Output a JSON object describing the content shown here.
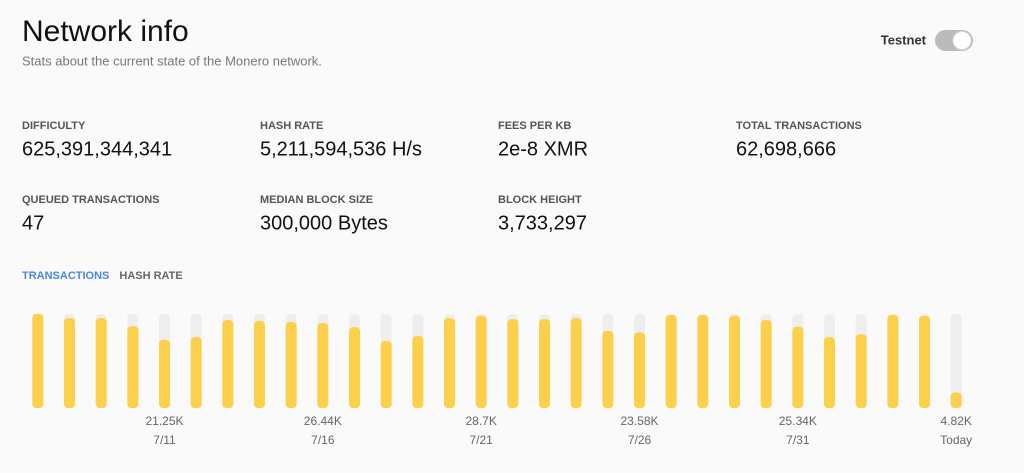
{
  "header": {
    "title": "Network info",
    "subtitle": "Stats about the current state of the Monero network."
  },
  "toggle": {
    "label": "Testnet",
    "on": true
  },
  "stats": [
    {
      "label": "DIFFICULTY",
      "value": "625,391,344,341"
    },
    {
      "label": "HASH RATE",
      "value": "5,211,594,536 H/s"
    },
    {
      "label": "FEES PER KB",
      "value": "2e-8 XMR"
    },
    {
      "label": "TOTAL TRANSACTIONS",
      "value": "62,698,666"
    },
    {
      "label": "QUEUED TRANSACTIONS",
      "value": "47"
    },
    {
      "label": "MEDIAN BLOCK SIZE",
      "value": "300,000 Bytes"
    },
    {
      "label": "BLOCK HEIGHT",
      "value": "3,733,297"
    }
  ],
  "tabs": [
    {
      "label": "TRANSACTIONS",
      "active": true
    },
    {
      "label": "HASH RATE",
      "active": false
    }
  ],
  "chart_data": {
    "type": "bar",
    "categories": [
      null,
      null,
      null,
      null,
      "7/11",
      null,
      null,
      null,
      null,
      "7/16",
      null,
      null,
      null,
      null,
      "7/21",
      null,
      null,
      null,
      null,
      "7/26",
      null,
      null,
      null,
      null,
      "7/31",
      null,
      null,
      null,
      null,
      "Today"
    ],
    "values": [
      29300,
      28000,
      28000,
      25500,
      21250,
      22100,
      27400,
      27100,
      26800,
      26440,
      25200,
      20900,
      22400,
      28000,
      28700,
      27700,
      27700,
      28000,
      24000,
      23580,
      29000,
      29000,
      28700,
      27400,
      25340,
      22100,
      23000,
      29000,
      28700,
      4820
    ],
    "value_labels": [
      null,
      null,
      null,
      null,
      "21.25K",
      null,
      null,
      null,
      null,
      "26.44K",
      null,
      null,
      null,
      null,
      "28.7K",
      null,
      null,
      null,
      null,
      "23.58K",
      null,
      null,
      null,
      null,
      "25.34K",
      null,
      null,
      null,
      null,
      "4.82K"
    ],
    "color": "#fcd04a",
    "track_color": "#eeeeee",
    "ylim": [
      0,
      29300
    ]
  }
}
